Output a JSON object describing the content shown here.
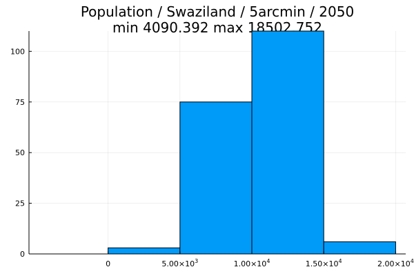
{
  "chart_data": {
    "type": "bar",
    "title_lines": [
      "Population / Swaziland / 5arcmin / 2050",
      "min 4090.392  max 18502.752"
    ],
    "xlabel": "",
    "ylabel": "",
    "xlim": [
      -5500,
      20700
    ],
    "ylim": [
      0,
      110
    ],
    "grid": true,
    "x_ticks": [
      {
        "value": 0,
        "base": "0",
        "exp": ""
      },
      {
        "value": 5000,
        "base": "5.00×10",
        "exp": "3"
      },
      {
        "value": 10000,
        "base": "1.00×10",
        "exp": "4"
      },
      {
        "value": 15000,
        "base": "1.50×10",
        "exp": "4"
      },
      {
        "value": 20000,
        "base": "2.00×10",
        "exp": "4"
      }
    ],
    "y_ticks": [
      0,
      25,
      50,
      75,
      100
    ],
    "bins": [
      {
        "x0": 0,
        "x1": 5000,
        "count": 3
      },
      {
        "x0": 5000,
        "x1": 10000,
        "count": 75
      },
      {
        "x0": 10000,
        "x1": 15000,
        "count": 110
      },
      {
        "x0": 15000,
        "x1": 20000,
        "count": 6
      }
    ],
    "bar_color": "#009af9"
  }
}
